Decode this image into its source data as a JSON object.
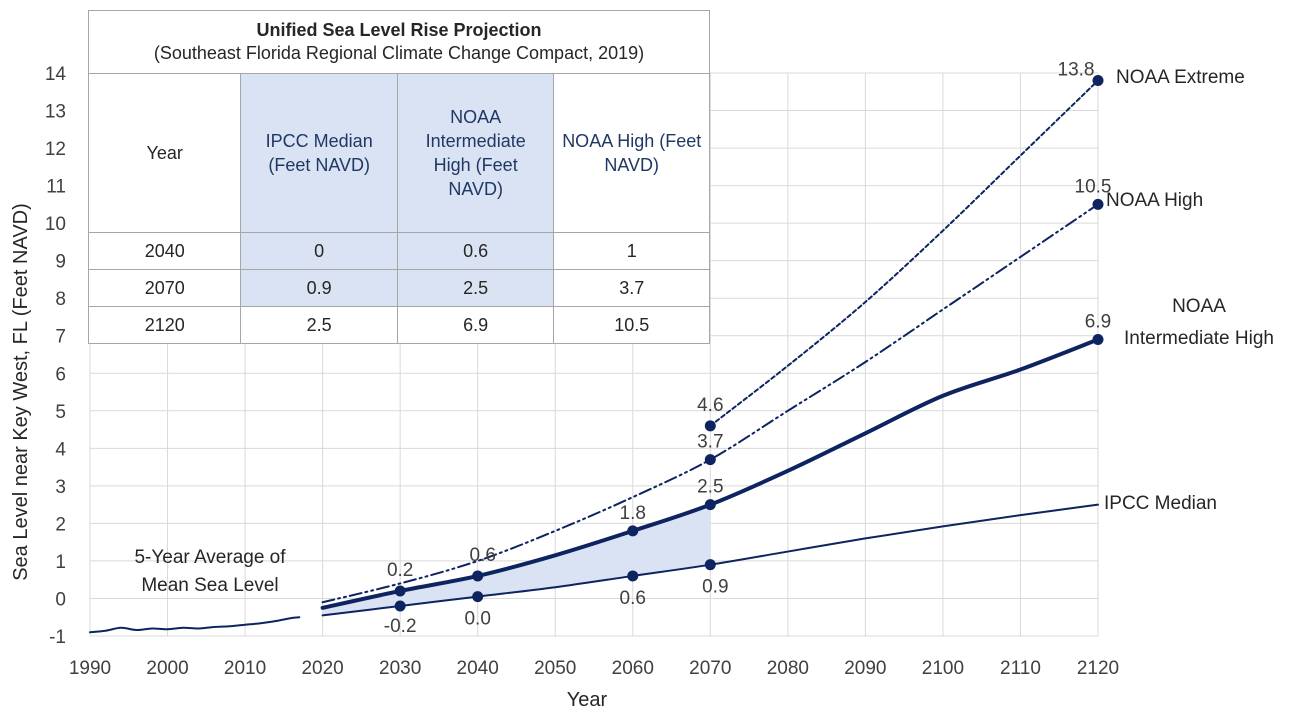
{
  "chart_data": {
    "type": "line",
    "xlabel": "Year",
    "ylabel": "Sea Level near Key West, FL (Feet NAVD)",
    "xlim": [
      1990,
      2120
    ],
    "ylim": [
      -1,
      14
    ],
    "xticks": [
      1990,
      2000,
      2010,
      2020,
      2030,
      2040,
      2050,
      2060,
      2070,
      2080,
      2090,
      2100,
      2110,
      2120
    ],
    "yticks": [
      -1,
      0,
      1,
      2,
      3,
      4,
      5,
      6,
      7,
      8,
      9,
      10,
      11,
      12,
      13,
      14
    ],
    "grid": true,
    "shaded_band": {
      "between": [
        "IPCC Median",
        "NOAA Intermediate High"
      ],
      "x_range": [
        2020,
        2070
      ],
      "color": "#dae3f3"
    },
    "series": [
      {
        "name": "5-Year Average of Mean Sea Level",
        "style": "solid-thin",
        "x": [
          1990,
          1992,
          1994,
          1996,
          1998,
          2000,
          2002,
          2004,
          2006,
          2008,
          2010,
          2012,
          2014,
          2016,
          2017
        ],
        "y": [
          -0.9,
          -0.86,
          -0.78,
          -0.84,
          -0.8,
          -0.82,
          -0.78,
          -0.8,
          -0.76,
          -0.74,
          -0.7,
          -0.66,
          -0.6,
          -0.52,
          -0.5
        ]
      },
      {
        "name": "IPCC Median",
        "style": "solid-thin",
        "x": [
          2020,
          2030,
          2040,
          2050,
          2060,
          2070,
          2080,
          2090,
          2100,
          2110,
          2120
        ],
        "y": [
          -0.45,
          -0.2,
          0.05,
          0.3,
          0.6,
          0.9,
          1.25,
          1.6,
          1.92,
          2.22,
          2.5
        ],
        "markers": [
          {
            "x": 2030,
            "y": -0.2,
            "label": "-0.2"
          },
          {
            "x": 2040,
            "y": 0.05,
            "label": "0.0"
          },
          {
            "x": 2060,
            "y": 0.6,
            "label": "0.6"
          },
          {
            "x": 2070,
            "y": 0.9,
            "label": "0.9"
          }
        ]
      },
      {
        "name": "NOAA Intermediate High",
        "style": "solid-thick",
        "x": [
          2020,
          2030,
          2040,
          2050,
          2060,
          2070,
          2080,
          2090,
          2100,
          2110,
          2120
        ],
        "y": [
          -0.25,
          0.2,
          0.6,
          1.15,
          1.8,
          2.5,
          3.4,
          4.4,
          5.4,
          6.1,
          6.9
        ],
        "markers": [
          {
            "x": 2030,
            "y": 0.2,
            "label": "0.2"
          },
          {
            "x": 2040,
            "y": 0.6,
            "label": "0.6"
          },
          {
            "x": 2060,
            "y": 1.8,
            "label": "1.8"
          },
          {
            "x": 2070,
            "y": 2.5,
            "label": "2.5"
          },
          {
            "x": 2120,
            "y": 6.9,
            "label": "6.9"
          }
        ]
      },
      {
        "name": "NOAA High",
        "style": "dash-dot",
        "x": [
          2020,
          2030,
          2040,
          2050,
          2060,
          2070,
          2080,
          2090,
          2100,
          2110,
          2120
        ],
        "y": [
          -0.1,
          0.4,
          1.0,
          1.8,
          2.7,
          3.7,
          5.0,
          6.3,
          7.7,
          9.1,
          10.5
        ],
        "markers": [
          {
            "x": 2070,
            "y": 3.7,
            "label": "3.7"
          },
          {
            "x": 2120,
            "y": 10.5,
            "label": "10.5"
          }
        ]
      },
      {
        "name": "NOAA Extreme",
        "style": "dotted",
        "x": [
          2070,
          2080,
          2090,
          2100,
          2110,
          2120
        ],
        "y": [
          4.6,
          6.2,
          7.9,
          9.8,
          11.8,
          13.8
        ],
        "markers": [
          {
            "x": 2070,
            "y": 4.6,
            "label": "4.6"
          },
          {
            "x": 2120,
            "y": 13.8,
            "label": "13.8"
          }
        ]
      }
    ],
    "series_labels": {
      "extreme": "NOAA Extreme",
      "high": "NOAA High",
      "inter_line1": "NOAA",
      "inter_line2": "Intermediate High",
      "ipcc": "IPCC Median",
      "hist_line1": "5-Year Average of",
      "hist_line2": "Mean Sea Level"
    },
    "table": {
      "title": "Unified Sea Level Rise Projection",
      "subtitle": "(Southeast Florida Regional Climate Change Compact, 2019)",
      "headers": [
        "Year",
        "IPCC Median (Feet NAVD)",
        "NOAA Intermediate High (Feet NAVD)",
        "NOAA High (Feet NAVD)"
      ],
      "rows": [
        [
          "2040",
          "0",
          "0.6",
          "1"
        ],
        [
          "2070",
          "0.9",
          "2.5",
          "3.7"
        ],
        [
          "2120",
          "2.5",
          "6.9",
          "10.5"
        ]
      ]
    }
  },
  "colors": {
    "line": "#0d2461",
    "band": "#dae3f3",
    "grid": "#d9d9d9",
    "table_header_text": "#1f3864",
    "table_highlight": "#dae3f3"
  }
}
